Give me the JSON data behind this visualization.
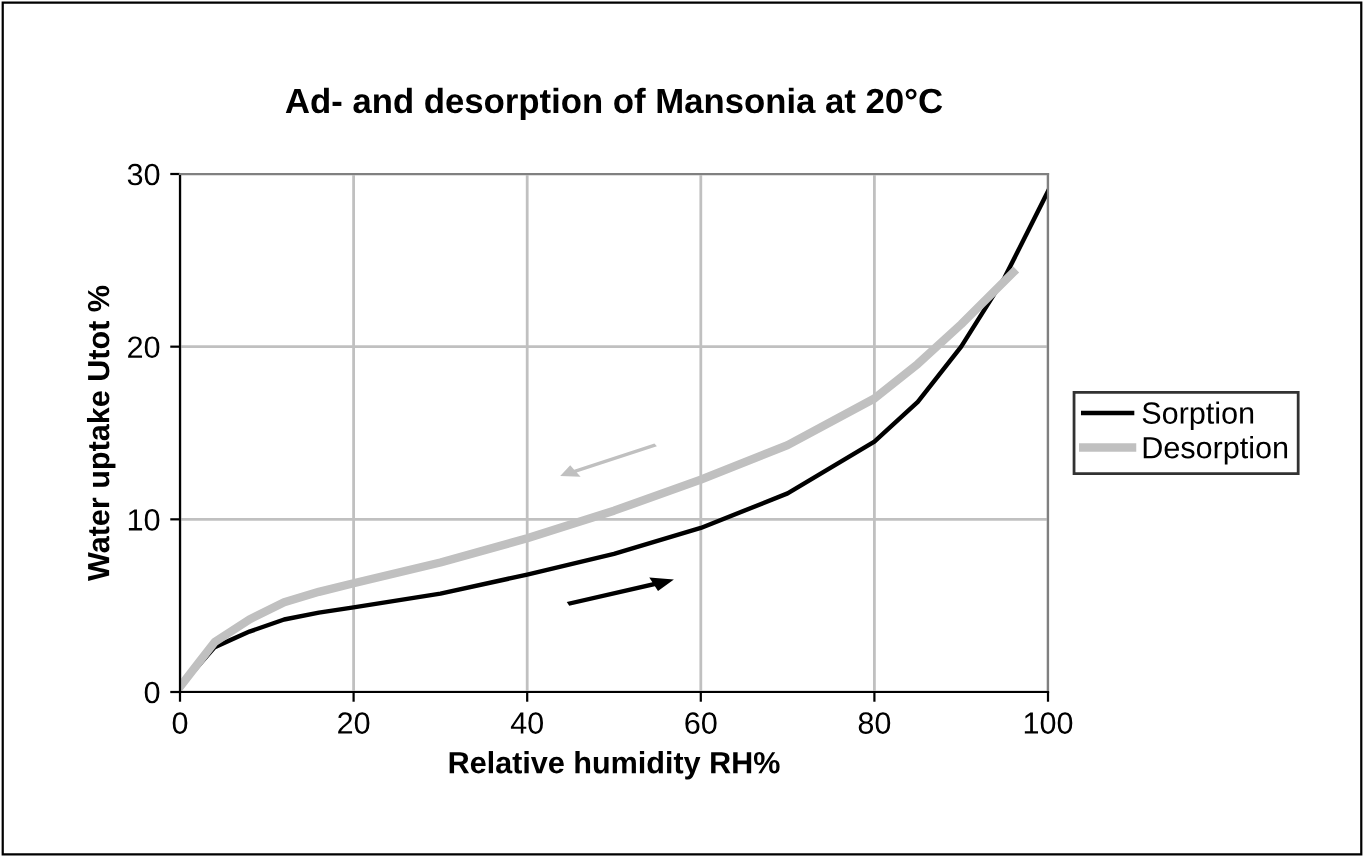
{
  "chart_data": {
    "type": "line",
    "title": "Ad- and desorption of Mansonia at 20°C",
    "xlabel": "Relative humidity RH%",
    "ylabel": "Water uptake Utot %",
    "xlim": [
      0,
      100
    ],
    "xticks": [
      0,
      20,
      40,
      60,
      80,
      100
    ],
    "ylim": [
      0,
      30
    ],
    "yticks": [
      0,
      10,
      20,
      30
    ],
    "grid": true,
    "legend": "right",
    "marker": "none",
    "line_style": "solid",
    "series": [
      {
        "name": "Sorption",
        "color": "#000000",
        "x": [
          0,
          4,
          8,
          12,
          16,
          20,
          30,
          40,
          50,
          60,
          70,
          80,
          85,
          90,
          95,
          100
        ],
        "values": [
          0.3,
          2.6,
          3.5,
          4.2,
          4.6,
          4.9,
          5.7,
          6.8,
          8.0,
          9.5,
          11.5,
          14.5,
          16.8,
          20,
          24,
          29
        ]
      },
      {
        "name": "Desorption",
        "color": "#c0c0c0",
        "x": [
          0,
          2,
          4,
          8,
          12,
          16,
          20,
          30,
          40,
          50,
          60,
          70,
          80,
          85,
          90,
          96
        ],
        "values": [
          0.3,
          1.6,
          2.9,
          4.2,
          5.2,
          5.8,
          6.3,
          7.5,
          8.9,
          10.5,
          12.3,
          14.3,
          17,
          19,
          21.3,
          24.3
        ]
      }
    ]
  }
}
